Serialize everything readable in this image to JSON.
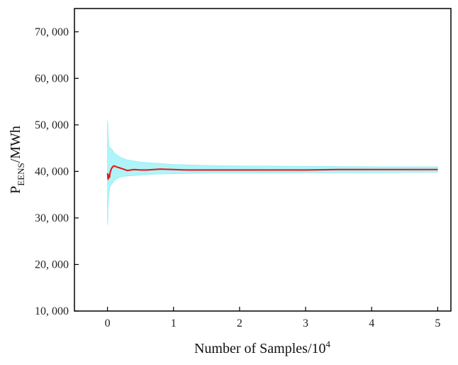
{
  "chart_data": {
    "type": "line",
    "xlabel": "Number of Samples/10",
    "xlabel_sup": "4",
    "ylabel": "P",
    "ylabel_sub": "EENS",
    "ylabel_unit": "/MWh",
    "xlim": [
      -0.5,
      5.2
    ],
    "ylim": [
      10000,
      75000
    ],
    "x_ticks": [
      0,
      1,
      2,
      3,
      4,
      5
    ],
    "x_tick_labels": [
      "0",
      "1",
      "2",
      "3",
      "4",
      "5"
    ],
    "y_ticks": [
      10000,
      20000,
      30000,
      40000,
      50000,
      60000,
      70000
    ],
    "y_tick_labels": [
      "10, 000",
      "20, 000",
      "30, 000",
      "40, 000",
      "50, 000",
      "60, 000",
      "70, 000"
    ],
    "grid": false,
    "legend": "none",
    "colors": {
      "mean": "#ee1111",
      "band": "#aef4f8",
      "axis": "#000000"
    },
    "series": [
      {
        "role": "mean",
        "x": [
          0,
          0.01,
          0.02,
          0.03,
          0.04,
          0.06,
          0.08,
          0.1,
          0.15,
          0.2,
          0.3,
          0.4,
          0.5,
          0.6,
          0.8,
          1.0,
          1.2,
          1.5,
          2.0,
          2.5,
          3.0,
          3.5,
          4.0,
          4.5,
          5.0
        ],
        "values": [
          39600,
          38300,
          39200,
          38700,
          39800,
          40600,
          41000,
          41200,
          40900,
          40700,
          40200,
          40400,
          40300,
          40300,
          40500,
          40400,
          40300,
          40300,
          40300,
          40300,
          40300,
          40400,
          40400,
          40400,
          40400
        ]
      },
      {
        "role": "band",
        "x": [
          0,
          0.005,
          0.01,
          0.02,
          0.03,
          0.05,
          0.08,
          0.1,
          0.15,
          0.2,
          0.3,
          0.5,
          0.7,
          1.0,
          1.5,
          2.0,
          3.0,
          4.0,
          5.0
        ],
        "upper": [
          50000,
          51000,
          48000,
          46000,
          45000,
          45000,
          44500,
          44000,
          43500,
          43000,
          42500,
          42000,
          41800,
          41500,
          41300,
          41200,
          41100,
          41000,
          41000
        ],
        "lower": [
          30000,
          28500,
          32000,
          34500,
          36000,
          37000,
          37500,
          38000,
          38500,
          38800,
          39000,
          39200,
          39400,
          39500,
          39600,
          39600,
          39700,
          39700,
          39800
        ]
      }
    ]
  }
}
